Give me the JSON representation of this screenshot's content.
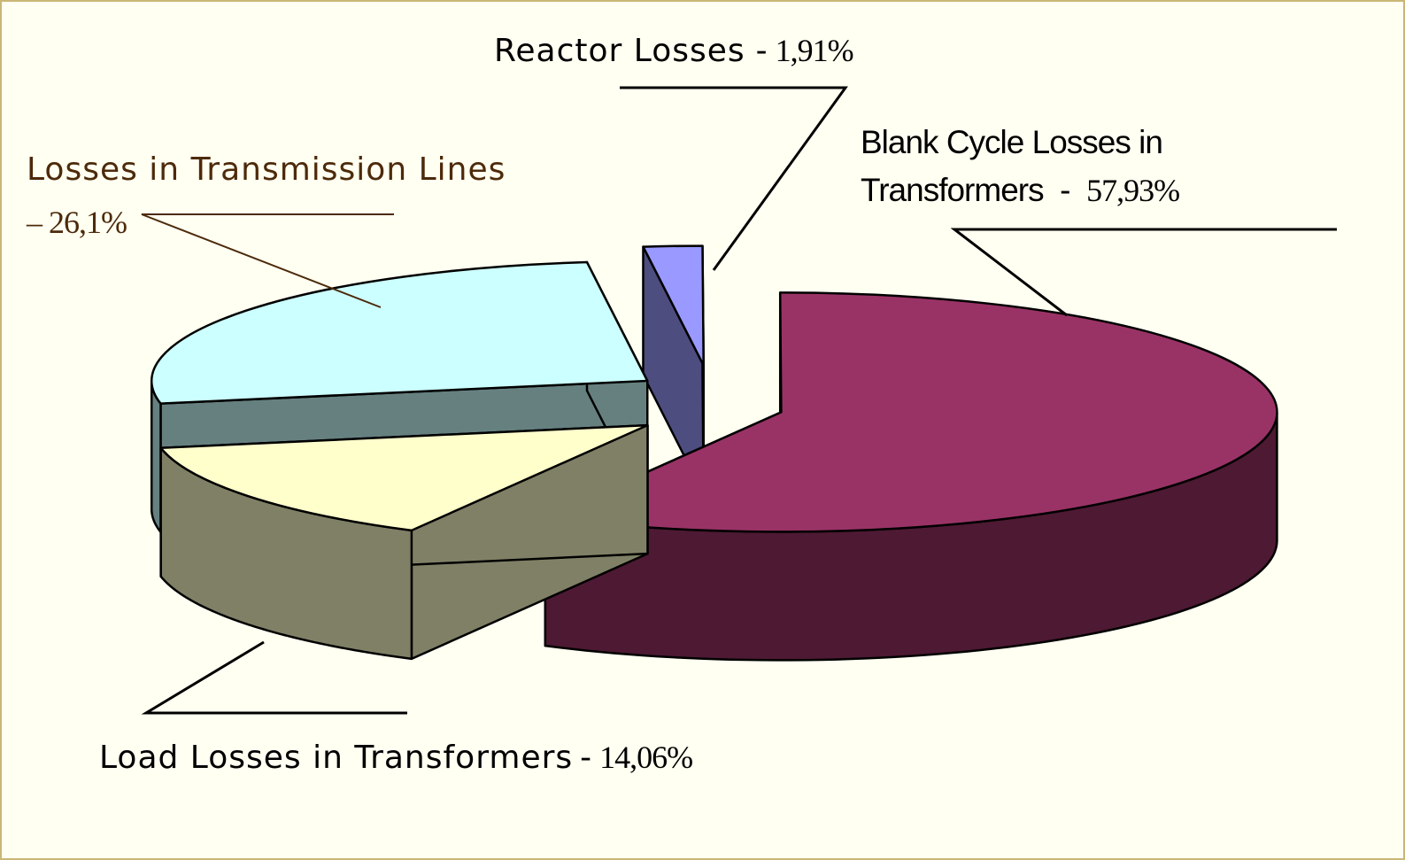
{
  "chart_data": {
    "type": "pie",
    "categories": [
      "Reactor Losses",
      "Blank Cycle Losses in Transformers",
      "Load Losses in Transformers",
      "Losses in Transmission Lines"
    ],
    "values": [
      1.91,
      57.93,
      14.06,
      26.1
    ],
    "value_labels": [
      "1,91%",
      "57,93%",
      "14,06%",
      "26,1%"
    ],
    "separators": [
      "-",
      "-",
      "-",
      "–"
    ],
    "colors": [
      "#9999ff",
      "#993366",
      "#ffffcc",
      "#ccffff"
    ],
    "side_colors": [
      "#4d4d80",
      "#4d1933",
      "#808066",
      "#668080"
    ]
  }
}
